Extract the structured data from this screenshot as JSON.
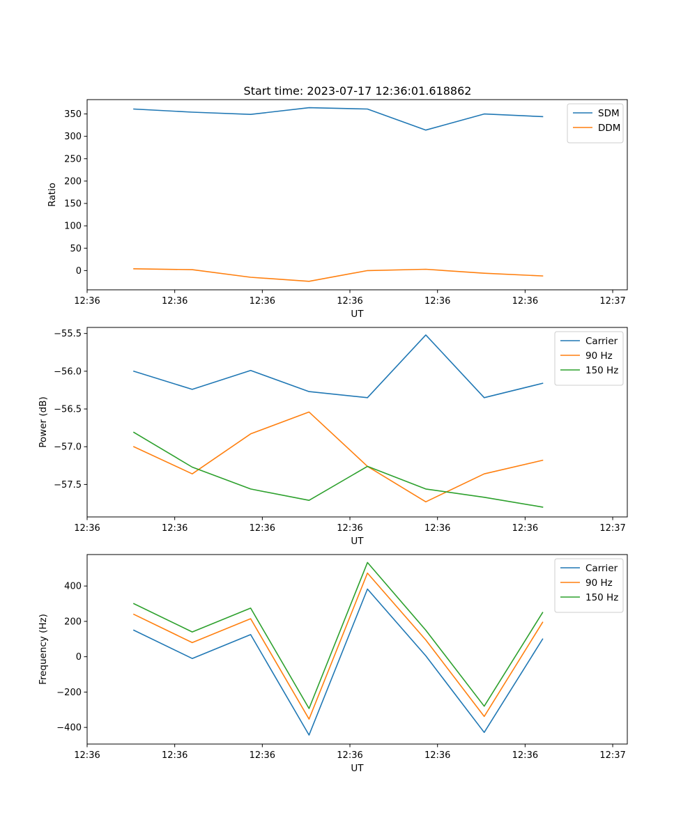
{
  "title": "Start time: 2023-07-17 12:36:01.618862",
  "colors": {
    "blue": "#1f77b4",
    "orange": "#ff7f0e",
    "green": "#2ca02c"
  },
  "chart_data": [
    {
      "type": "line",
      "xlabel": "UT",
      "ylabel": "Ratio",
      "x": [
        1,
        2,
        3,
        4,
        5,
        6,
        7,
        8
      ],
      "xlim": [
        0.2,
        9.45
      ],
      "x_ticks": [
        {
          "x": 0.2,
          "label": "12:36"
        },
        {
          "x": 1.7,
          "label": "12:36"
        },
        {
          "x": 3.2,
          "label": "12:36"
        },
        {
          "x": 4.7,
          "label": "12:36"
        },
        {
          "x": 6.2,
          "label": "12:36"
        },
        {
          "x": 7.7,
          "label": "12:36"
        },
        {
          "x": 9.2,
          "label": "12:37"
        }
      ],
      "ylim": [
        -43,
        382
      ],
      "y_ticks": [
        {
          "y": 350,
          "label": "350"
        },
        {
          "y": 300,
          "label": "300"
        },
        {
          "y": 250,
          "label": "250"
        },
        {
          "y": 200,
          "label": "200"
        },
        {
          "y": 150,
          "label": "150"
        },
        {
          "y": 100,
          "label": "100"
        },
        {
          "y": 50,
          "label": "50"
        },
        {
          "y": 0,
          "label": "0"
        }
      ],
      "legend": "top-right",
      "series": [
        {
          "name": "SDM",
          "color": "#1f77b4",
          "values": [
            361,
            354,
            349,
            364,
            361,
            314,
            350,
            344
          ]
        },
        {
          "name": "DDM",
          "color": "#ff7f0e",
          "values": [
            4,
            2,
            -15,
            -24,
            0,
            3,
            -6,
            -12
          ]
        }
      ]
    },
    {
      "type": "line",
      "xlabel": "UT",
      "ylabel": "Power (dB)",
      "x": [
        1,
        2,
        3,
        4,
        5,
        6,
        7,
        8
      ],
      "xlim": [
        0.2,
        9.45
      ],
      "x_ticks": [
        {
          "x": 0.2,
          "label": "12:36"
        },
        {
          "x": 1.7,
          "label": "12:36"
        },
        {
          "x": 3.2,
          "label": "12:36"
        },
        {
          "x": 4.7,
          "label": "12:36"
        },
        {
          "x": 6.2,
          "label": "12:36"
        },
        {
          "x": 7.7,
          "label": "12:36"
        },
        {
          "x": 9.2,
          "label": "12:37"
        }
      ],
      "ylim": [
        -57.93,
        -55.42
      ],
      "y_ticks": [
        {
          "y": -55.5,
          "label": "−55.5"
        },
        {
          "y": -56.0,
          "label": "−56.0"
        },
        {
          "y": -56.5,
          "label": "−56.5"
        },
        {
          "y": -57.0,
          "label": "−57.0"
        },
        {
          "y": -57.5,
          "label": "−57.5"
        }
      ],
      "legend": "top-right",
      "series": [
        {
          "name": "Carrier",
          "color": "#1f77b4",
          "values": [
            -56.0,
            -56.24,
            -55.99,
            -56.27,
            -56.35,
            -55.52,
            -56.35,
            -56.16
          ]
        },
        {
          "name": "90 Hz",
          "color": "#ff7f0e",
          "values": [
            -57.0,
            -57.36,
            -56.83,
            -56.54,
            -57.26,
            -57.73,
            -57.36,
            -57.18
          ]
        },
        {
          "name": "150 Hz",
          "color": "#2ca02c",
          "values": [
            -56.81,
            -57.27,
            -57.56,
            -57.71,
            -57.26,
            -57.56,
            -57.67,
            -57.8
          ]
        }
      ]
    },
    {
      "type": "line",
      "xlabel": "UT",
      "ylabel": "Frequency (Hz)",
      "x": [
        1,
        2,
        3,
        4,
        5,
        6,
        7,
        8
      ],
      "xlim": [
        0.2,
        9.45
      ],
      "x_ticks": [
        {
          "x": 0.2,
          "label": "12:36"
        },
        {
          "x": 1.7,
          "label": "12:36"
        },
        {
          "x": 3.2,
          "label": "12:36"
        },
        {
          "x": 4.7,
          "label": "12:36"
        },
        {
          "x": 6.2,
          "label": "12:36"
        },
        {
          "x": 7.7,
          "label": "12:36"
        },
        {
          "x": 9.2,
          "label": "12:37"
        }
      ],
      "ylim": [
        -494,
        578
      ],
      "y_ticks": [
        {
          "y": 400,
          "label": "400"
        },
        {
          "y": 200,
          "label": "200"
        },
        {
          "y": 0,
          "label": "0"
        },
        {
          "y": -200,
          "label": "−200"
        },
        {
          "y": -400,
          "label": "−400"
        }
      ],
      "legend": "top-right",
      "series": [
        {
          "name": "Carrier",
          "color": "#1f77b4",
          "values": [
            150,
            -10,
            125,
            -443,
            383,
            5,
            -428,
            100
          ]
        },
        {
          "name": "90 Hz",
          "color": "#ff7f0e",
          "values": [
            240,
            80,
            215,
            -353,
            473,
            95,
            -338,
            195
          ]
        },
        {
          "name": "150 Hz",
          "color": "#2ca02c",
          "values": [
            300,
            140,
            275,
            -293,
            533,
            150,
            -280,
            250
          ]
        }
      ]
    }
  ]
}
